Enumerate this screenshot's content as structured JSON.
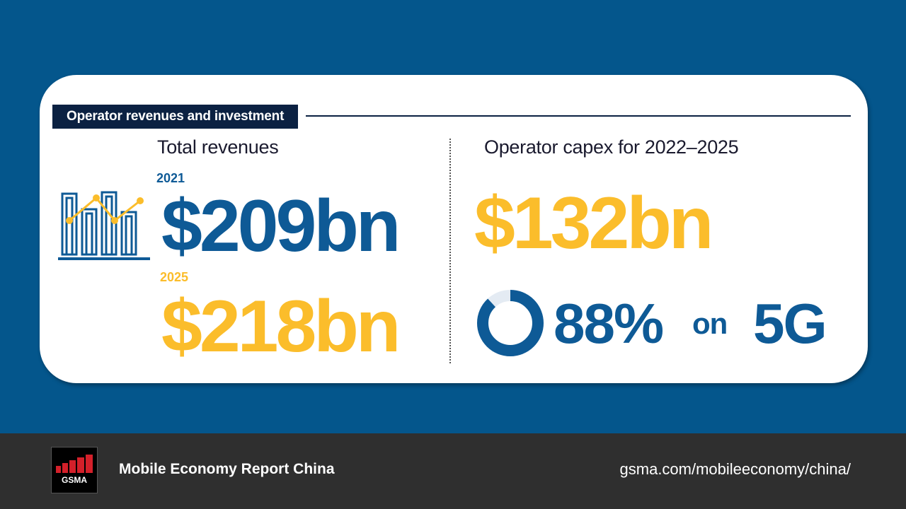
{
  "section_title": "Operator revenues and investment",
  "revenues": {
    "heading": "Total revenues",
    "year_1": "2021",
    "value_1": "$209bn",
    "year_2": "2025",
    "value_2": "$218bn",
    "icon": "bar-line-chart-icon"
  },
  "capex": {
    "heading": "Operator capex for 2022–2025",
    "value": "$132bn",
    "share_percent": 88,
    "share_label": "88%",
    "connector": "on",
    "technology": "5G",
    "icon": "donut-chart-icon"
  },
  "footer": {
    "logo_text": "GSMA",
    "title": "Mobile Economy Report China",
    "url": "gsma.com/mobileeconomy/china/"
  },
  "colors": {
    "background": "#04568c",
    "blue": "#0e5a96",
    "yellow": "#fbbd2b",
    "navy": "#0b2142",
    "logo_red": "#d4202a"
  }
}
